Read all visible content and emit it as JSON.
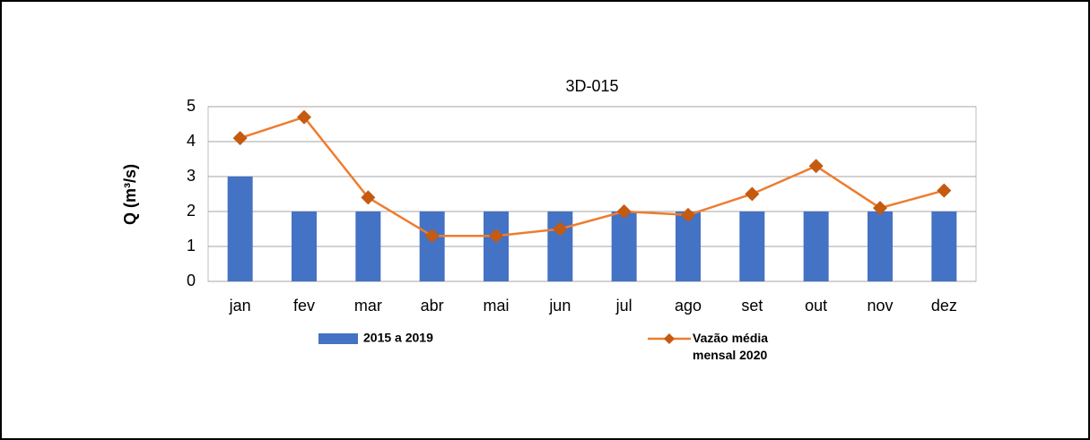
{
  "chart_data": {
    "type": "bar",
    "title": "3D-015",
    "y_label": "Q (m³/s)",
    "categories": [
      "jan",
      "fev",
      "mar",
      "abr",
      "mai",
      "jun",
      "jul",
      "ago",
      "set",
      "out",
      "nov",
      "dez"
    ],
    "series": [
      {
        "name": "2015 a 2019",
        "type": "bar",
        "color": "#4472c4",
        "values": [
          3,
          2,
          2,
          2,
          2,
          2,
          2,
          2,
          2,
          2,
          2,
          2
        ]
      },
      {
        "name": "Vazão média mensal 2020",
        "type": "line",
        "color": "#ed7d31",
        "marker_color": "#c55a11",
        "values": [
          4.1,
          4.7,
          2.4,
          1.3,
          1.3,
          1.5,
          2.0,
          1.9,
          2.5,
          3.3,
          2.1,
          2.6
        ]
      }
    ],
    "ylim": [
      0,
      5
    ],
    "yticks": [
      0,
      1,
      2,
      3,
      4,
      5
    ],
    "grid": true,
    "legend": "bottom"
  }
}
